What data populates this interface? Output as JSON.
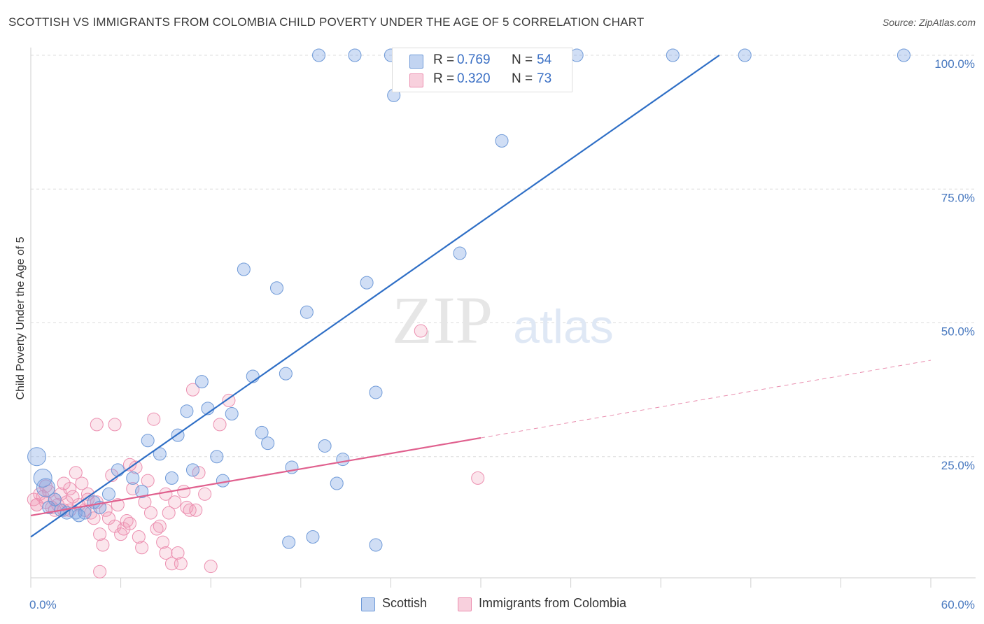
{
  "title": "SCOTTISH VS IMMIGRANTS FROM COLOMBIA CHILD POVERTY UNDER THE AGE OF 5 CORRELATION CHART",
  "source": "Source: ZipAtlas.com",
  "watermark": {
    "zip": "ZIP",
    "atlas": "atlas"
  },
  "legend": {
    "r_label": "R =",
    "n_label": "N =",
    "rows": [
      {
        "r": "0.769",
        "n": "54"
      },
      {
        "r": "0.320",
        "n": "73"
      }
    ]
  },
  "bottom_legend": [
    "Scottish",
    "Immigrants from Colombia"
  ],
  "colors": {
    "blue_fill": "rgba(120,160,225,0.35)",
    "blue_stroke": "#6f9ad8",
    "blue_line": "#2f6fc6",
    "pink_fill": "rgba(240,150,180,0.25)",
    "pink_stroke": "#ec8fb0",
    "pink_line": "#e0608e",
    "tick_text": "#4a7ac0",
    "grid": "#dcdcdc"
  },
  "chart_data": {
    "type": "scatter",
    "title": "SCOTTISH VS IMMIGRANTS FROM COLOMBIA CHILD POVERTY UNDER THE AGE OF 5 CORRELATION CHART",
    "xlabel": "",
    "ylabel": "Child Poverty Under the Age of 5",
    "xlim": [
      0,
      60
    ],
    "ylim": [
      0,
      103
    ],
    "x_tick_labels": [
      "0.0%",
      "60.0%"
    ],
    "y_ticks": [
      25,
      50,
      75,
      100
    ],
    "y_tick_labels": [
      "25.0%",
      "50.0%",
      "75.0%",
      "100.0%"
    ],
    "grid": true,
    "legend_position": "top-center",
    "series": [
      {
        "name": "Scottish",
        "r": 0.769,
        "n": 54,
        "trend": {
          "x": [
            0,
            45.9
          ],
          "y": [
            10.0,
            100.0
          ],
          "style": "solid"
        },
        "points": [
          [
            0.4,
            25.0,
            2
          ],
          [
            1.0,
            19.2,
            2
          ],
          [
            0.8,
            21.0,
            2
          ],
          [
            1.6,
            17.0,
            1
          ],
          [
            2.0,
            15.0,
            1
          ],
          [
            2.4,
            14.5,
            1
          ],
          [
            3.0,
            14.5,
            1
          ],
          [
            3.6,
            14.5,
            1
          ],
          [
            4.2,
            16.5,
            1
          ],
          [
            5.2,
            18.0,
            1
          ],
          [
            5.8,
            22.5,
            1
          ],
          [
            6.8,
            21.0,
            1
          ],
          [
            7.4,
            18.5,
            1
          ],
          [
            7.8,
            28.0,
            1
          ],
          [
            8.6,
            25.5,
            1
          ],
          [
            9.4,
            21.0,
            1
          ],
          [
            9.8,
            29.0,
            1
          ],
          [
            10.4,
            33.5,
            1
          ],
          [
            10.8,
            22.5,
            1
          ],
          [
            11.4,
            39.0,
            1
          ],
          [
            11.8,
            34.0,
            1
          ],
          [
            12.4,
            25.0,
            1
          ],
          [
            12.8,
            20.5,
            1
          ],
          [
            13.4,
            33.0,
            1
          ],
          [
            14.2,
            60.0,
            1
          ],
          [
            14.8,
            40.0,
            1
          ],
          [
            15.4,
            29.5,
            1
          ],
          [
            15.8,
            27.5,
            1
          ],
          [
            16.4,
            56.5,
            1
          ],
          [
            17.0,
            40.5,
            1
          ],
          [
            17.2,
            9.0,
            1
          ],
          [
            17.4,
            23.0,
            1
          ],
          [
            18.4,
            52.0,
            1
          ],
          [
            18.8,
            10.0,
            1
          ],
          [
            19.6,
            27.0,
            1
          ],
          [
            20.4,
            20.0,
            1
          ],
          [
            20.8,
            24.5,
            1
          ],
          [
            22.4,
            57.5,
            1
          ],
          [
            23.0,
            37.0,
            1
          ],
          [
            23.0,
            8.5,
            1
          ],
          [
            24.2,
            92.5,
            1
          ],
          [
            28.6,
            63.0,
            1
          ],
          [
            31.4,
            84.0,
            1
          ],
          [
            19.2,
            100.0,
            1
          ],
          [
            21.6,
            100.0,
            1
          ],
          [
            24.0,
            100.0,
            1
          ],
          [
            26.6,
            100.0,
            1
          ],
          [
            36.4,
            100.0,
            1
          ],
          [
            42.8,
            100.0,
            1
          ],
          [
            47.6,
            100.0,
            1
          ],
          [
            58.2,
            100.0,
            1
          ],
          [
            4.6,
            15.5,
            1
          ],
          [
            3.2,
            14.0,
            1
          ],
          [
            1.2,
            15.5,
            1
          ]
        ]
      },
      {
        "name": "Immigrants from Colombia",
        "r": 0.32,
        "n": 73,
        "trend": {
          "x": [
            0,
            30.0
          ],
          "y": [
            14.0,
            28.5
          ],
          "style": "solid",
          "dashed_extension": {
            "x": [
              30.0,
              60.0
            ],
            "y": [
              28.5,
              43.0
            ]
          }
        },
        "points": [
          [
            0.2,
            17.0
          ],
          [
            0.4,
            16.0
          ],
          [
            0.6,
            18.0
          ],
          [
            0.8,
            17.5
          ],
          [
            1.0,
            16.5
          ],
          [
            1.2,
            18.5
          ],
          [
            1.4,
            15.5
          ],
          [
            1.6,
            17.0
          ],
          [
            1.8,
            16.0
          ],
          [
            2.0,
            18.0
          ],
          [
            2.2,
            15.0
          ],
          [
            2.4,
            16.5
          ],
          [
            2.6,
            19.0
          ],
          [
            2.8,
            17.5
          ],
          [
            3.0,
            22.0
          ],
          [
            3.2,
            16.0
          ],
          [
            3.4,
            20.0
          ],
          [
            3.6,
            15.0
          ],
          [
            3.8,
            17.0
          ],
          [
            4.0,
            14.5
          ],
          [
            4.2,
            13.5
          ],
          [
            4.4,
            16.5
          ],
          [
            4.6,
            10.5
          ],
          [
            4.8,
            8.5
          ],
          [
            5.0,
            15.0
          ],
          [
            5.2,
            13.5
          ],
          [
            5.4,
            21.5
          ],
          [
            5.6,
            12.0
          ],
          [
            5.8,
            16.0
          ],
          [
            6.0,
            10.5
          ],
          [
            6.2,
            11.5
          ],
          [
            6.4,
            13.0
          ],
          [
            6.6,
            12.5
          ],
          [
            6.8,
            19.0
          ],
          [
            7.0,
            23.0
          ],
          [
            7.2,
            10.0
          ],
          [
            7.4,
            8.0
          ],
          [
            7.6,
            16.5
          ],
          [
            7.8,
            20.5
          ],
          [
            8.0,
            14.5
          ],
          [
            8.2,
            32.0
          ],
          [
            8.4,
            11.5
          ],
          [
            8.6,
            12.0
          ],
          [
            8.8,
            9.0
          ],
          [
            9.0,
            18.0
          ],
          [
            9.2,
            14.5
          ],
          [
            9.4,
            5.0
          ],
          [
            9.6,
            16.5
          ],
          [
            9.8,
            7.0
          ],
          [
            10.0,
            5.0
          ],
          [
            10.2,
            18.5
          ],
          [
            10.4,
            15.5
          ],
          [
            10.6,
            15.0
          ],
          [
            10.8,
            37.5
          ],
          [
            11.0,
            15.0
          ],
          [
            11.2,
            22.0
          ],
          [
            11.6,
            18.0
          ],
          [
            12.0,
            4.5
          ],
          [
            12.6,
            31.0
          ],
          [
            13.2,
            35.5
          ],
          [
            4.4,
            31.0
          ],
          [
            5.6,
            31.0
          ],
          [
            4.6,
            3.5
          ],
          [
            26.0,
            48.5
          ],
          [
            29.8,
            21.0
          ],
          [
            1.0,
            19.5
          ],
          [
            2.6,
            15.0
          ],
          [
            3.8,
            18.0
          ],
          [
            6.6,
            23.5
          ],
          [
            0.4,
            16.0
          ],
          [
            1.6,
            15.0
          ],
          [
            2.2,
            20.0
          ],
          [
            9.0,
            7.0
          ]
        ]
      }
    ]
  }
}
